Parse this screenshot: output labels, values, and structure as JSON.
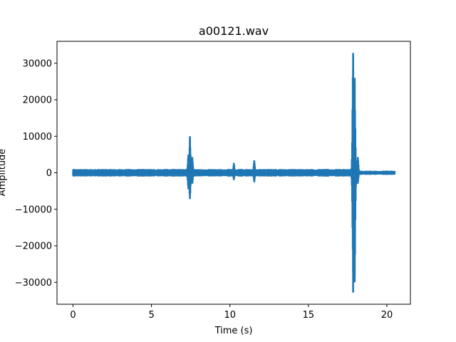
{
  "chart_data": {
    "type": "line",
    "title": "a00121.wav",
    "xlabel": "Time (s)",
    "ylabel": "Amplitude",
    "xlim": [
      -1.02,
      21.5
    ],
    "ylim": [
      -36000,
      36000
    ],
    "x_ticks": [
      0,
      5,
      10,
      15,
      20
    ],
    "x_tick_labels": [
      "0",
      "5",
      "10",
      "15",
      "20"
    ],
    "y_ticks": [
      -30000,
      -20000,
      -10000,
      0,
      10000,
      20000,
      30000
    ],
    "y_tick_labels": [
      "−30000",
      "−20000",
      "−10000",
      "0",
      "10000",
      "20000",
      "30000"
    ],
    "grid": false,
    "legend": "none",
    "series": [
      {
        "color": "#1f77b4",
        "baseline_amplitude": 900,
        "duration": 20.5,
        "events": [
          {
            "t": 7.35,
            "max": 5000,
            "min": -4500
          },
          {
            "t": 7.45,
            "max": 10000,
            "min": -7200
          },
          {
            "t": 7.6,
            "max": 4300,
            "min": -3000
          },
          {
            "t": 10.25,
            "max": 2700,
            "min": -2000
          },
          {
            "t": 11.55,
            "max": 3400,
            "min": -2600
          },
          {
            "t": 17.85,
            "max": 32800,
            "min": -32800
          },
          {
            "t": 17.95,
            "max": 26000,
            "min": -30000
          },
          {
            "t": 18.15,
            "max": 4300,
            "min": -3000
          }
        ]
      }
    ]
  }
}
